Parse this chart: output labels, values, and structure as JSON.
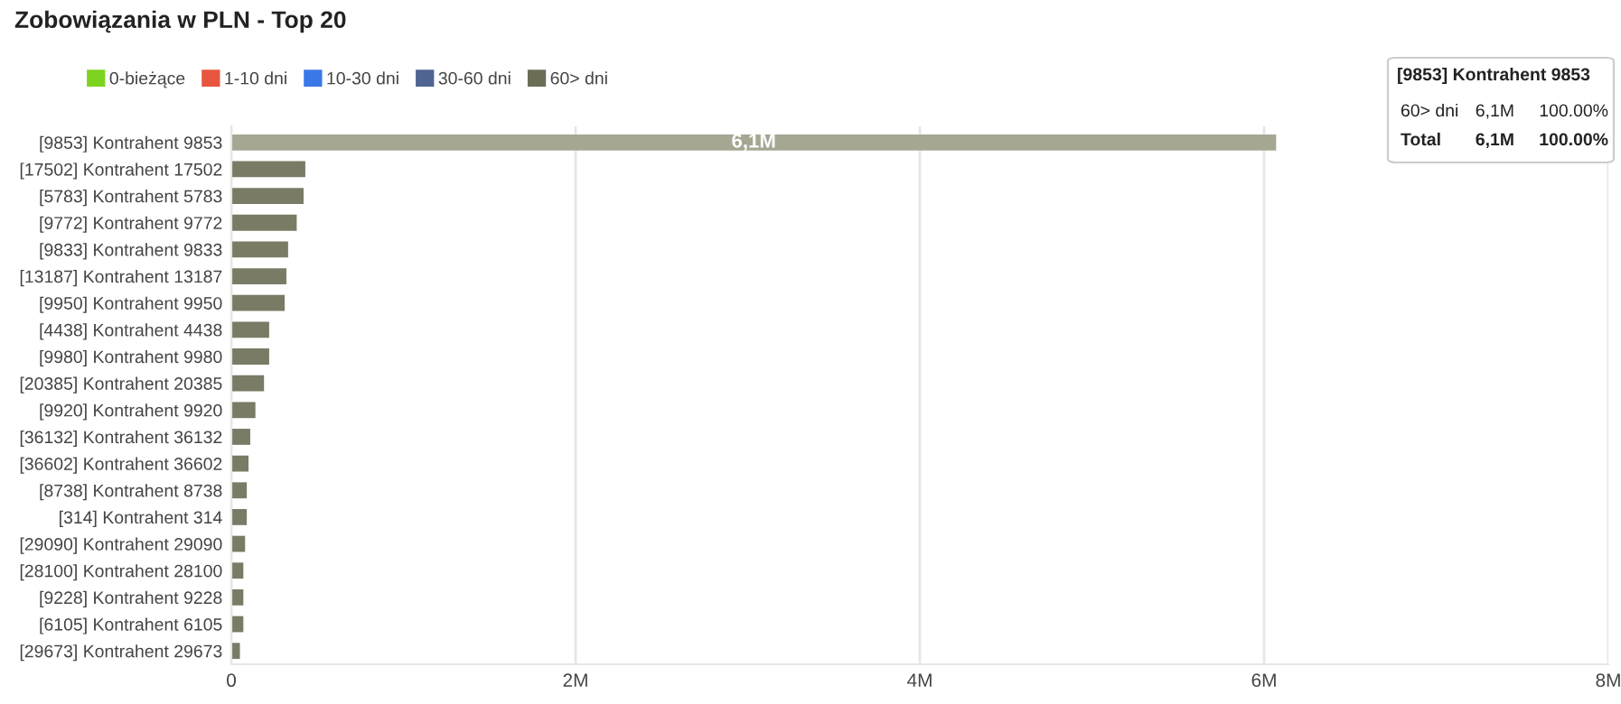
{
  "chart_data": {
    "type": "bar",
    "orientation": "horizontal",
    "title": "Zobowiązania w PLN - Top 20",
    "categories": [
      "[9853] Kontrahent 9853",
      "[17502] Kontrahent 17502",
      "[5783] Kontrahent 5783",
      "[9772] Kontrahent 9772",
      "[9833] Kontrahent 9833",
      "[13187] Kontrahent 13187",
      "[9950] Kontrahent 9950",
      "[4438] Kontrahent 4438",
      "[9980] Kontrahent 9980",
      "[20385] Kontrahent 20385",
      "[9920] Kontrahent 9920",
      "[36132] Kontrahent 36132",
      "[36602] Kontrahent 36602",
      "[8738] Kontrahent 8738",
      "[314] Kontrahent 314",
      "[29090] Kontrahent 29090",
      "[28100] Kontrahent 28100",
      "[9228] Kontrahent 9228",
      "[6105] Kontrahent 6105",
      "[29673] Kontrahent 29673"
    ],
    "series": [
      {
        "name": "0-bieżące",
        "color": "#7ed321",
        "values": [
          null,
          null,
          null,
          null,
          null,
          null,
          null,
          null,
          null,
          null,
          null,
          null,
          null,
          null,
          null,
          null,
          null,
          null,
          null,
          null
        ]
      },
      {
        "name": "1-10 dni",
        "color": "#e8553e",
        "values": [
          null,
          null,
          null,
          null,
          null,
          null,
          null,
          null,
          null,
          null,
          null,
          null,
          null,
          null,
          null,
          null,
          null,
          null,
          null,
          null
        ]
      },
      {
        "name": "10-30 dni",
        "color": "#3b78e7",
        "values": [
          null,
          null,
          null,
          null,
          null,
          null,
          null,
          null,
          null,
          null,
          null,
          null,
          null,
          null,
          null,
          null,
          null,
          null,
          null,
          null
        ]
      },
      {
        "name": "30-60 dni",
        "color": "#4f6491",
        "values": [
          null,
          null,
          null,
          null,
          null,
          null,
          null,
          null,
          null,
          null,
          null,
          null,
          null,
          null,
          null,
          null,
          null,
          null,
          null,
          null
        ]
      },
      {
        "name": "60> dni",
        "color": "#6b6e55",
        "colors": [
          "#a5a793",
          "#7a7b65",
          "#7a7b65",
          "#7a7b65",
          "#7a7b65",
          "#7a7b65",
          "#7a7b65",
          "#7a7b65",
          "#7a7b65",
          "#7a7b65",
          "#7a7b65",
          "#7a7b65",
          "#7a7b65",
          "#7a7b65",
          "#7a7b65",
          "#7a7b65",
          "#7a7b65",
          "#7a7b65",
          "#7a7b65",
          "#7a7b65"
        ],
        "values": [
          6070000,
          430000,
          420000,
          380000,
          330000,
          320000,
          310000,
          220000,
          220000,
          190000,
          140000,
          110000,
          100000,
          90000,
          90000,
          80000,
          70000,
          70000,
          70000,
          50000
        ],
        "value_labels": [
          "6,1M",
          null,
          null,
          null,
          null,
          null,
          null,
          null,
          null,
          null,
          null,
          null,
          null,
          null,
          null,
          null,
          null,
          null,
          null,
          null
        ]
      }
    ],
    "xlim": [
      0,
      8000000
    ],
    "xticks": [
      0,
      {
        "value": 2000000,
        "label": "2M"
      },
      {
        "value": 4000000,
        "label": "4M"
      },
      {
        "value": 6000000,
        "label": "6M"
      },
      {
        "value": 8000000,
        "label": "8M"
      }
    ],
    "grid": "x",
    "legend": "top left",
    "annotations": [
      "[9853] Kontrahent 9853",
      "60> dni",
      "6,1M",
      "100.00%",
      "Total",
      "6,1M",
      "100.00%"
    ]
  }
}
